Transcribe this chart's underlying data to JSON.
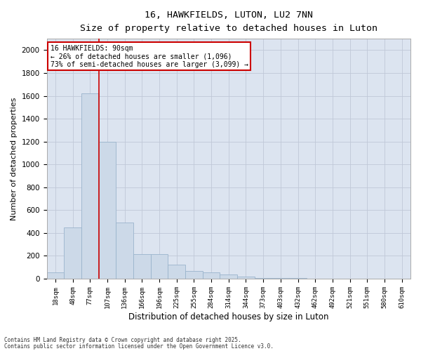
{
  "title1": "16, HAWKFIELDS, LUTON, LU2 7NN",
  "title2": "Size of property relative to detached houses in Luton",
  "xlabel": "Distribution of detached houses by size in Luton",
  "ylabel": "Number of detached properties",
  "categories": [
    "18sqm",
    "48sqm",
    "77sqm",
    "107sqm",
    "136sqm",
    "166sqm",
    "196sqm",
    "225sqm",
    "255sqm",
    "284sqm",
    "314sqm",
    "344sqm",
    "373sqm",
    "403sqm",
    "432sqm",
    "462sqm",
    "492sqm",
    "521sqm",
    "551sqm",
    "580sqm",
    "610sqm"
  ],
  "values": [
    55,
    450,
    1620,
    1200,
    490,
    215,
    215,
    120,
    65,
    55,
    35,
    20,
    8,
    5,
    3,
    2,
    1,
    1,
    0,
    0,
    0
  ],
  "bar_color": "#ccd9e8",
  "bar_edgecolor": "#9ab4cc",
  "grid_color": "#c0c8d8",
  "bg_color": "#dce4f0",
  "vline_color": "#cc0000",
  "annotation_text": "16 HAWKFIELDS: 90sqm\n← 26% of detached houses are smaller (1,096)\n73% of semi-detached houses are larger (3,099) →",
  "annotation_box_color": "#cc0000",
  "footnote1": "Contains HM Land Registry data © Crown copyright and database right 2025.",
  "footnote2": "Contains public sector information licensed under the Open Government Licence v3.0.",
  "ylim": [
    0,
    2100
  ],
  "yticks": [
    0,
    200,
    400,
    600,
    800,
    1000,
    1200,
    1400,
    1600,
    1800,
    2000
  ]
}
